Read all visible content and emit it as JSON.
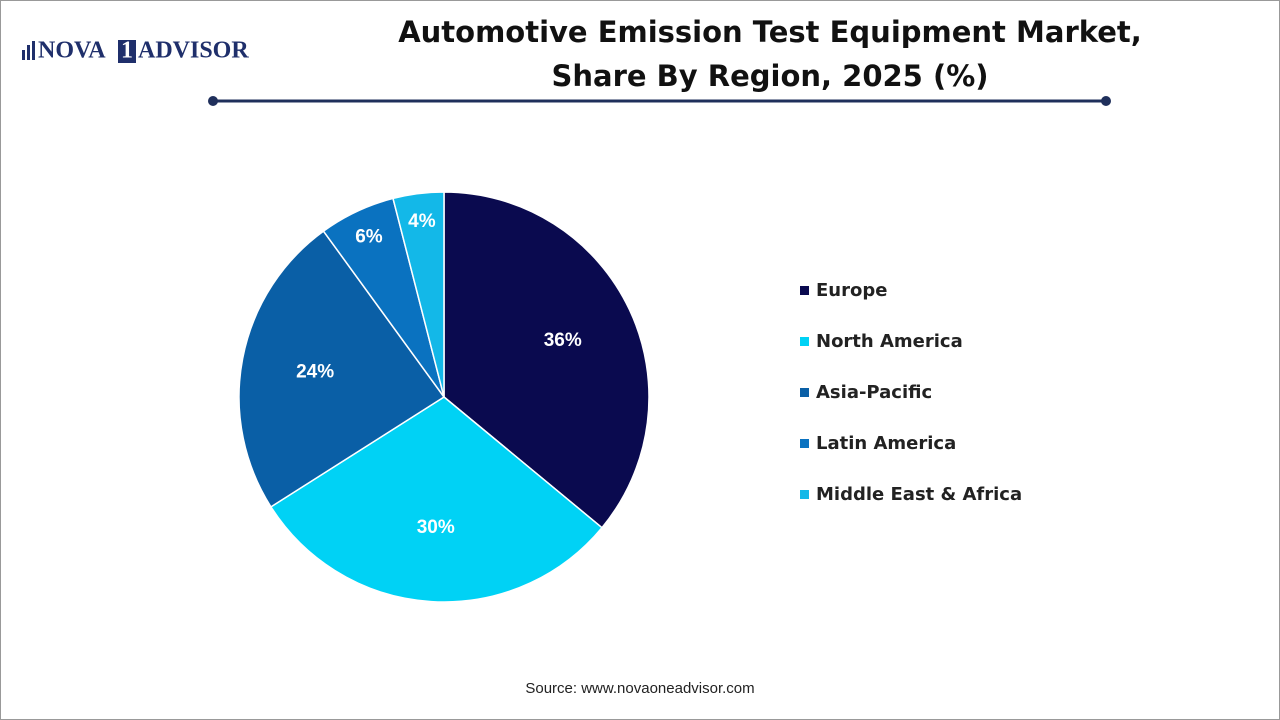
{
  "logo": {
    "left": "NOVA",
    "mark": "1",
    "right": "ADVISOR"
  },
  "chart_data": {
    "type": "pie",
    "title": [
      "Automotive Emission Test Equipment Market,",
      "Share By Region, 2025 (%)"
    ],
    "categories": [
      "Europe",
      "North America",
      "Asia-Pacific",
      "Latin America",
      "Middle East & Africa"
    ],
    "values": [
      36,
      30,
      24,
      6,
      4
    ],
    "value_labels": [
      "36%",
      "30%",
      "24%",
      "6%",
      "4%"
    ],
    "colors": [
      "#0a0a4f",
      "#00d2f5",
      "#0a5fa6",
      "#0a72c0",
      "#13b8e8"
    ],
    "legend": "right",
    "source": "Source: www.novaoneadvisor.com"
  }
}
